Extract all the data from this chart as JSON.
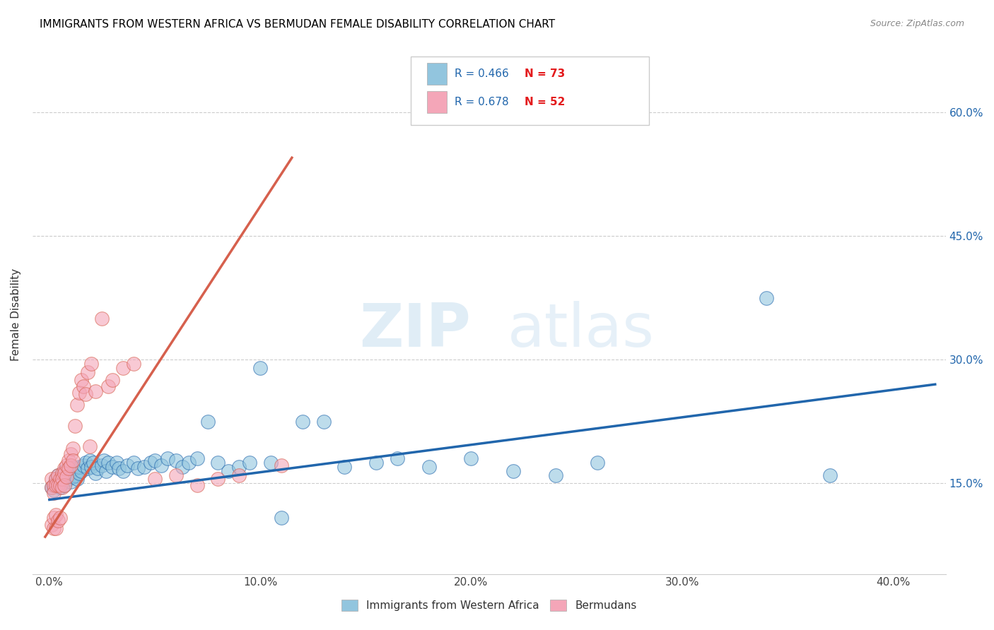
{
  "title": "IMMIGRANTS FROM WESTERN AFRICA VS BERMUDAN FEMALE DISABILITY CORRELATION CHART",
  "source": "Source: ZipAtlas.com",
  "ylabel": "Female Disability",
  "x_tick_labels": [
    "0.0%",
    "10.0%",
    "20.0%",
    "30.0%",
    "40.0%"
  ],
  "x_tick_values": [
    0.0,
    0.1,
    0.2,
    0.3,
    0.4
  ],
  "y_tick_labels": [
    "15.0%",
    "30.0%",
    "45.0%",
    "60.0%"
  ],
  "y_tick_values": [
    0.15,
    0.3,
    0.45,
    0.6
  ],
  "xlim": [
    -0.008,
    0.425
  ],
  "ylim": [
    0.04,
    0.67
  ],
  "legend_label1": "Immigrants from Western Africa",
  "legend_label2": "Bermudans",
  "blue_color": "#92c5de",
  "pink_color": "#f4a6b8",
  "blue_line_color": "#2166ac",
  "pink_line_color": "#d6604d",
  "r_value_color": "#2166ac",
  "n_value_color": "#e31a1c",
  "watermark_zip": "ZIP",
  "watermark_atlas": "atlas",
  "blue_scatter_x": [
    0.001,
    0.002,
    0.002,
    0.003,
    0.003,
    0.004,
    0.004,
    0.005,
    0.005,
    0.006,
    0.006,
    0.007,
    0.007,
    0.008,
    0.009,
    0.009,
    0.01,
    0.01,
    0.011,
    0.012,
    0.012,
    0.013,
    0.014,
    0.014,
    0.015,
    0.016,
    0.017,
    0.018,
    0.019,
    0.02,
    0.021,
    0.022,
    0.023,
    0.025,
    0.026,
    0.027,
    0.028,
    0.03,
    0.032,
    0.033,
    0.035,
    0.037,
    0.04,
    0.042,
    0.045,
    0.048,
    0.05,
    0.053,
    0.056,
    0.06,
    0.063,
    0.066,
    0.07,
    0.075,
    0.08,
    0.085,
    0.09,
    0.095,
    0.1,
    0.105,
    0.11,
    0.12,
    0.13,
    0.14,
    0.155,
    0.165,
    0.18,
    0.2,
    0.22,
    0.24,
    0.26,
    0.34,
    0.37
  ],
  "blue_scatter_y": [
    0.145,
    0.148,
    0.142,
    0.15,
    0.155,
    0.148,
    0.16,
    0.145,
    0.152,
    0.158,
    0.155,
    0.165,
    0.148,
    0.162,
    0.155,
    0.16,
    0.152,
    0.165,
    0.158,
    0.16,
    0.168,
    0.155,
    0.162,
    0.17,
    0.165,
    0.172,
    0.175,
    0.168,
    0.178,
    0.17,
    0.175,
    0.162,
    0.168,
    0.172,
    0.178,
    0.165,
    0.175,
    0.17,
    0.175,
    0.168,
    0.165,
    0.172,
    0.175,
    0.168,
    0.17,
    0.175,
    0.178,
    0.172,
    0.18,
    0.178,
    0.17,
    0.175,
    0.18,
    0.225,
    0.175,
    0.165,
    0.17,
    0.175,
    0.29,
    0.175,
    0.108,
    0.225,
    0.225,
    0.17,
    0.175,
    0.18,
    0.17,
    0.18,
    0.165,
    0.16,
    0.175,
    0.375,
    0.16
  ],
  "pink_scatter_x": [
    0.001,
    0.001,
    0.001,
    0.002,
    0.002,
    0.002,
    0.002,
    0.003,
    0.003,
    0.003,
    0.003,
    0.004,
    0.004,
    0.004,
    0.005,
    0.005,
    0.005,
    0.006,
    0.006,
    0.006,
    0.007,
    0.007,
    0.007,
    0.008,
    0.008,
    0.009,
    0.009,
    0.01,
    0.01,
    0.011,
    0.011,
    0.012,
    0.013,
    0.014,
    0.015,
    0.016,
    0.017,
    0.018,
    0.019,
    0.02,
    0.022,
    0.025,
    0.028,
    0.03,
    0.035,
    0.04,
    0.05,
    0.06,
    0.07,
    0.08,
    0.09,
    0.11
  ],
  "pink_scatter_y": [
    0.155,
    0.145,
    0.1,
    0.148,
    0.138,
    0.095,
    0.108,
    0.155,
    0.148,
    0.112,
    0.095,
    0.16,
    0.148,
    0.105,
    0.155,
    0.148,
    0.108,
    0.162,
    0.155,
    0.145,
    0.168,
    0.162,
    0.148,
    0.172,
    0.158,
    0.178,
    0.168,
    0.185,
    0.172,
    0.192,
    0.178,
    0.22,
    0.245,
    0.26,
    0.275,
    0.268,
    0.258,
    0.285,
    0.195,
    0.295,
    0.262,
    0.35,
    0.268,
    0.275,
    0.29,
    0.295,
    0.155,
    0.16,
    0.148,
    0.155,
    0.16,
    0.172
  ],
  "blue_line_x": [
    0.0,
    0.42
  ],
  "blue_line_y": [
    0.13,
    0.27
  ],
  "pink_line_x": [
    -0.002,
    0.115
  ],
  "pink_line_y": [
    0.085,
    0.545
  ]
}
